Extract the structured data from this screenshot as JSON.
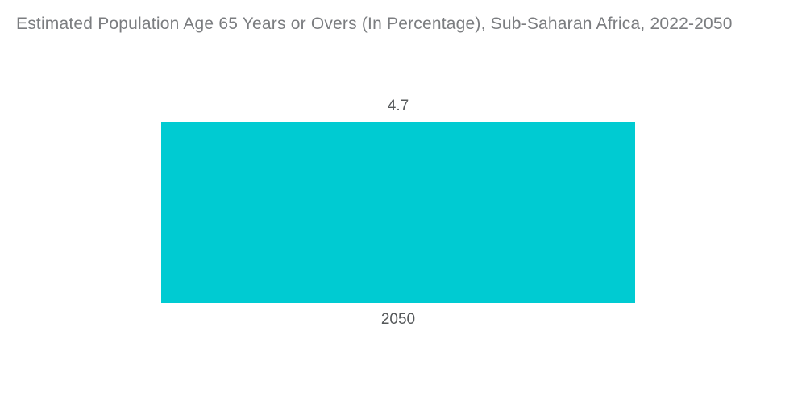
{
  "chart_data": {
    "type": "bar",
    "title": "Estimated Population Age 65 Years or Overs (In Percentage), Sub-Saharan Africa, 2022-2050",
    "categories": [
      "2050"
    ],
    "values": [
      4.7
    ],
    "series": [
      {
        "name": "Estimated Population Age 65 Years or Overs (In Percentage)",
        "values": [
          4.7
        ]
      }
    ],
    "value_labels": [
      "4.7"
    ],
    "xlabel": "",
    "ylabel": "",
    "ylim": [
      0,
      4.7
    ],
    "grid": false,
    "legend_position": "none",
    "orientation": "vertical",
    "colors": {
      "bar": "#00CBD2",
      "title_text": "#7B7D80",
      "label_text": "#55585A",
      "background": "#FFFFFF"
    }
  }
}
